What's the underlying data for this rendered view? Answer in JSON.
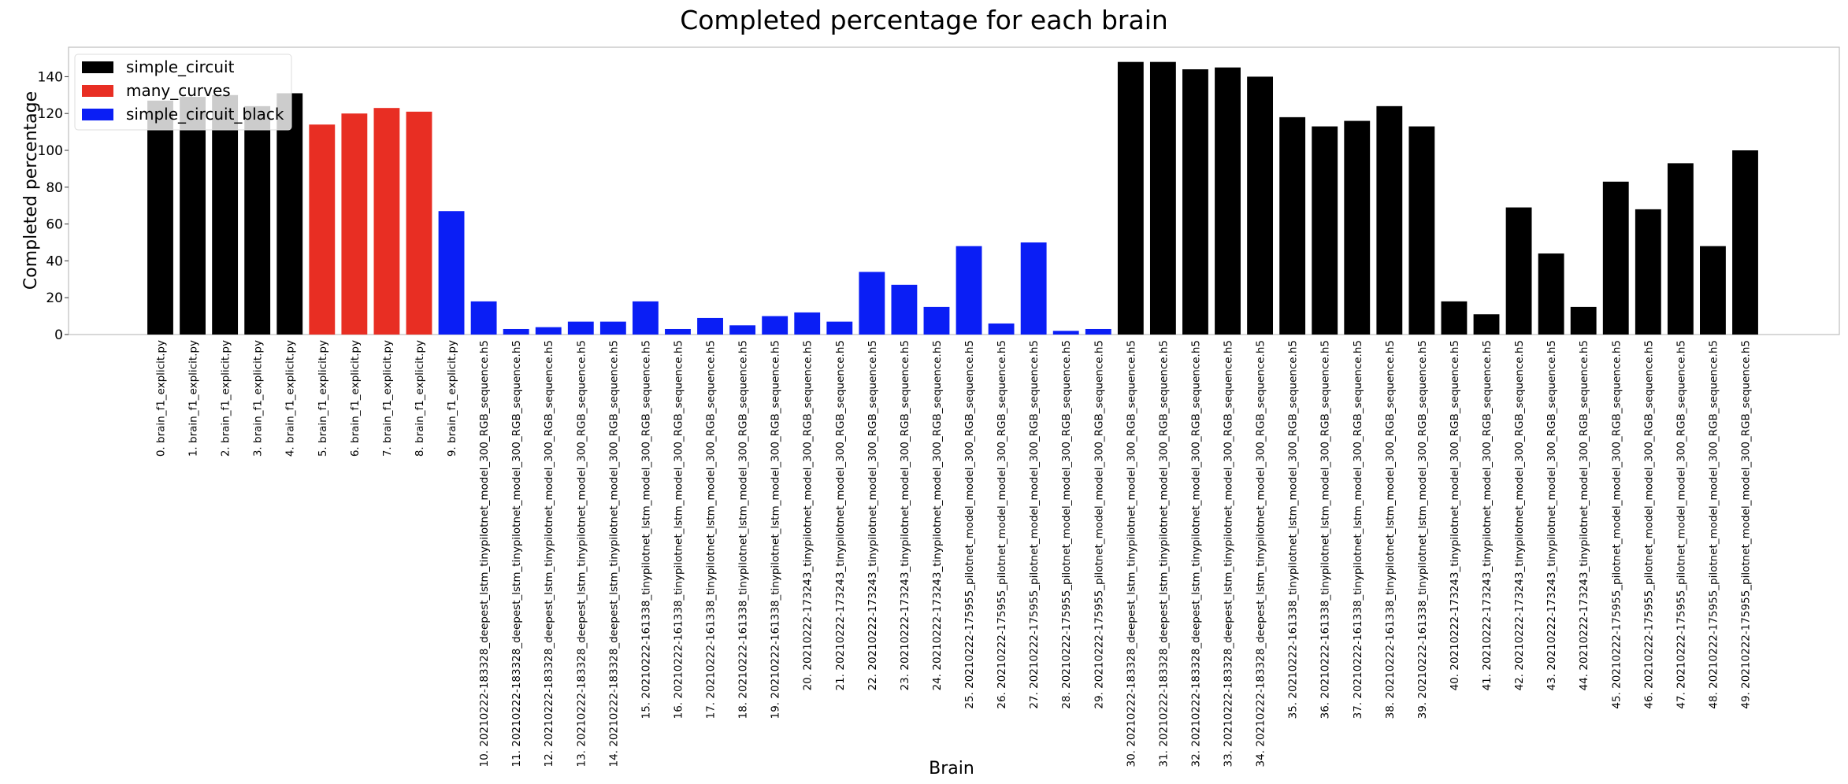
{
  "chart_data": {
    "type": "bar",
    "title": "Completed percentage for each brain",
    "xlabel": "Brain",
    "ylabel": "Completed percentage",
    "ylim": [
      0,
      150
    ],
    "yticks": [
      0,
      20,
      40,
      60,
      80,
      100,
      120,
      140
    ],
    "grid": false,
    "legend_placement": "top-left",
    "legend": [
      {
        "name": "simple_circuit",
        "color": "#000000"
      },
      {
        "name": "many_curves",
        "color": "#e82e23"
      },
      {
        "name": "simple_circuit_black",
        "color": "#0a1ef5"
      }
    ],
    "categories": [
      "0. brain_f1_explicit.py",
      "1. brain_f1_explicit.py",
      "2. brain_f1_explicit.py",
      "3. brain_f1_explicit.py",
      "4. brain_f1_explicit.py",
      "5. brain_f1_explicit.py",
      "6. brain_f1_explicit.py",
      "7. brain_f1_explicit.py",
      "8. brain_f1_explicit.py",
      "9. brain_f1_explicit.py",
      "10. 20210222-183328_deepest_lstm_tinypilotnet_model_300_RGB_sequence.h5",
      "11. 20210222-183328_deepest_lstm_tinypilotnet_model_300_RGB_sequence.h5",
      "12. 20210222-183328_deepest_lstm_tinypilotnet_model_300_RGB_sequence.h5",
      "13. 20210222-183328_deepest_lstm_tinypilotnet_model_300_RGB_sequence.h5",
      "14. 20210222-183328_deepest_lstm_tinypilotnet_model_300_RGB_sequence.h5",
      "15. 20210222-161338_tinypilotnet_lstm_model_300_RGB_sequence.h5",
      "16. 20210222-161338_tinypilotnet_lstm_model_300_RGB_sequence.h5",
      "17. 20210222-161338_tinypilotnet_lstm_model_300_RGB_sequence.h5",
      "18. 20210222-161338_tinypilotnet_lstm_model_300_RGB_sequence.h5",
      "19. 20210222-161338_tinypilotnet_lstm_model_300_RGB_sequence.h5",
      "20. 20210222-173243_tinypilotnet_model_300_RGB_sequence.h5",
      "21. 20210222-173243_tinypilotnet_model_300_RGB_sequence.h5",
      "22. 20210222-173243_tinypilotnet_model_300_RGB_sequence.h5",
      "23. 20210222-173243_tinypilotnet_model_300_RGB_sequence.h5",
      "24. 20210222-173243_tinypilotnet_model_300_RGB_sequence.h5",
      "25. 20210222-175955_pilotnet_model_model_300_RGB_sequence.h5",
      "26. 20210222-175955_pilotnet_model_model_300_RGB_sequence.h5",
      "27. 20210222-175955_pilotnet_model_model_300_RGB_sequence.h5",
      "28. 20210222-175955_pilotnet_model_model_300_RGB_sequence.h5",
      "29. 20210222-175955_pilotnet_model_model_300_RGB_sequence.h5",
      "30. 20210222-183328_deepest_lstm_tinypilotnet_model_300_RGB_sequence.h5",
      "31. 20210222-183328_deepest_lstm_tinypilotnet_model_300_RGB_sequence.h5",
      "32. 20210222-183328_deepest_lstm_tinypilotnet_model_300_RGB_sequence.h5",
      "33. 20210222-183328_deepest_lstm_tinypilotnet_model_300_RGB_sequence.h5",
      "34. 20210222-183328_deepest_lstm_tinypilotnet_model_300_RGB_sequence.h5",
      "35. 20210222-161338_tinypilotnet_lstm_model_300_RGB_sequence.h5",
      "36. 20210222-161338_tinypilotnet_lstm_model_300_RGB_sequence.h5",
      "37. 20210222-161338_tinypilotnet_lstm_model_300_RGB_sequence.h5",
      "38. 20210222-161338_tinypilotnet_lstm_model_300_RGB_sequence.h5",
      "39. 20210222-161338_tinypilotnet_lstm_model_300_RGB_sequence.h5",
      "40. 20210222-173243_tinypilotnet_model_300_RGB_sequence.h5",
      "41. 20210222-173243_tinypilotnet_model_300_RGB_sequence.h5",
      "42. 20210222-173243_tinypilotnet_model_300_RGB_sequence.h5",
      "43. 20210222-173243_tinypilotnet_model_300_RGB_sequence.h5",
      "44. 20210222-173243_tinypilotnet_model_300_RGB_sequence.h5",
      "45. 20210222-175955_pilotnet_model_model_300_RGB_sequence.h5",
      "46. 20210222-175955_pilotnet_model_model_300_RGB_sequence.h5",
      "47. 20210222-175955_pilotnet_model_model_300_RGB_sequence.h5",
      "48. 20210222-175955_pilotnet_model_model_300_RGB_sequence.h5",
      "49. 20210222-175955_pilotnet_model_model_300_RGB_sequence.h5"
    ],
    "values": [
      127,
      129,
      130,
      124,
      131,
      114,
      120,
      123,
      121,
      67,
      18,
      3,
      4,
      7,
      7,
      18,
      3,
      9,
      5,
      10,
      12,
      7,
      34,
      27,
      15,
      48,
      6,
      50,
      2,
      3,
      148,
      148,
      144,
      145,
      140,
      118,
      113,
      116,
      124,
      113,
      18,
      11,
      69,
      44,
      15,
      83,
      68,
      93,
      48,
      100
    ],
    "bar_series": [
      "simple_circuit",
      "simple_circuit",
      "simple_circuit",
      "simple_circuit",
      "simple_circuit",
      "many_curves",
      "many_curves",
      "many_curves",
      "many_curves",
      "simple_circuit_black",
      "simple_circuit_black",
      "simple_circuit_black",
      "simple_circuit_black",
      "simple_circuit_black",
      "simple_circuit_black",
      "simple_circuit_black",
      "simple_circuit_black",
      "simple_circuit_black",
      "simple_circuit_black",
      "simple_circuit_black",
      "simple_circuit_black",
      "simple_circuit_black",
      "simple_circuit_black",
      "simple_circuit_black",
      "simple_circuit_black",
      "simple_circuit_black",
      "simple_circuit_black",
      "simple_circuit_black",
      "simple_circuit_black",
      "simple_circuit_black",
      "simple_circuit",
      "simple_circuit",
      "simple_circuit",
      "simple_circuit",
      "simple_circuit",
      "simple_circuit",
      "simple_circuit",
      "simple_circuit",
      "simple_circuit",
      "simple_circuit",
      "simple_circuit",
      "simple_circuit",
      "simple_circuit",
      "simple_circuit",
      "simple_circuit",
      "simple_circuit",
      "simple_circuit",
      "simple_circuit",
      "simple_circuit",
      "simple_circuit"
    ]
  }
}
